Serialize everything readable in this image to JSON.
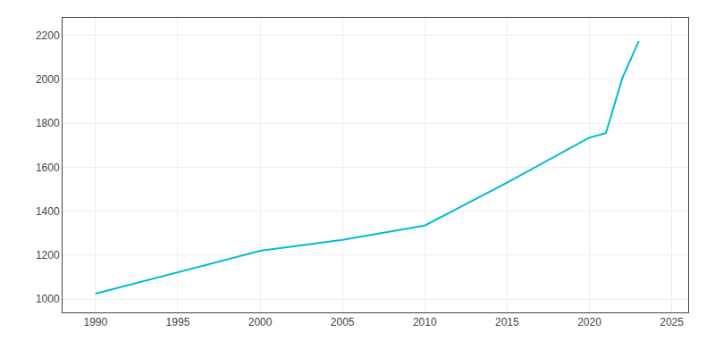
{
  "chart_data": {
    "type": "line",
    "x": [
      1990,
      2000,
      2005,
      2010,
      2015,
      2020,
      2021,
      2022,
      2023
    ],
    "values": [
      1025,
      1220,
      1270,
      1335,
      1530,
      1735,
      1755,
      2005,
      2175
    ],
    "color": "#00bcd4",
    "xlim": [
      1988,
      2026
    ],
    "ylim": [
      940,
      2280
    ],
    "xticks": [
      1990,
      1995,
      2000,
      2005,
      2010,
      2015,
      2020,
      2025
    ],
    "yticks": [
      1000,
      1200,
      1400,
      1600,
      1800,
      2000,
      2200
    ],
    "grid": true
  }
}
